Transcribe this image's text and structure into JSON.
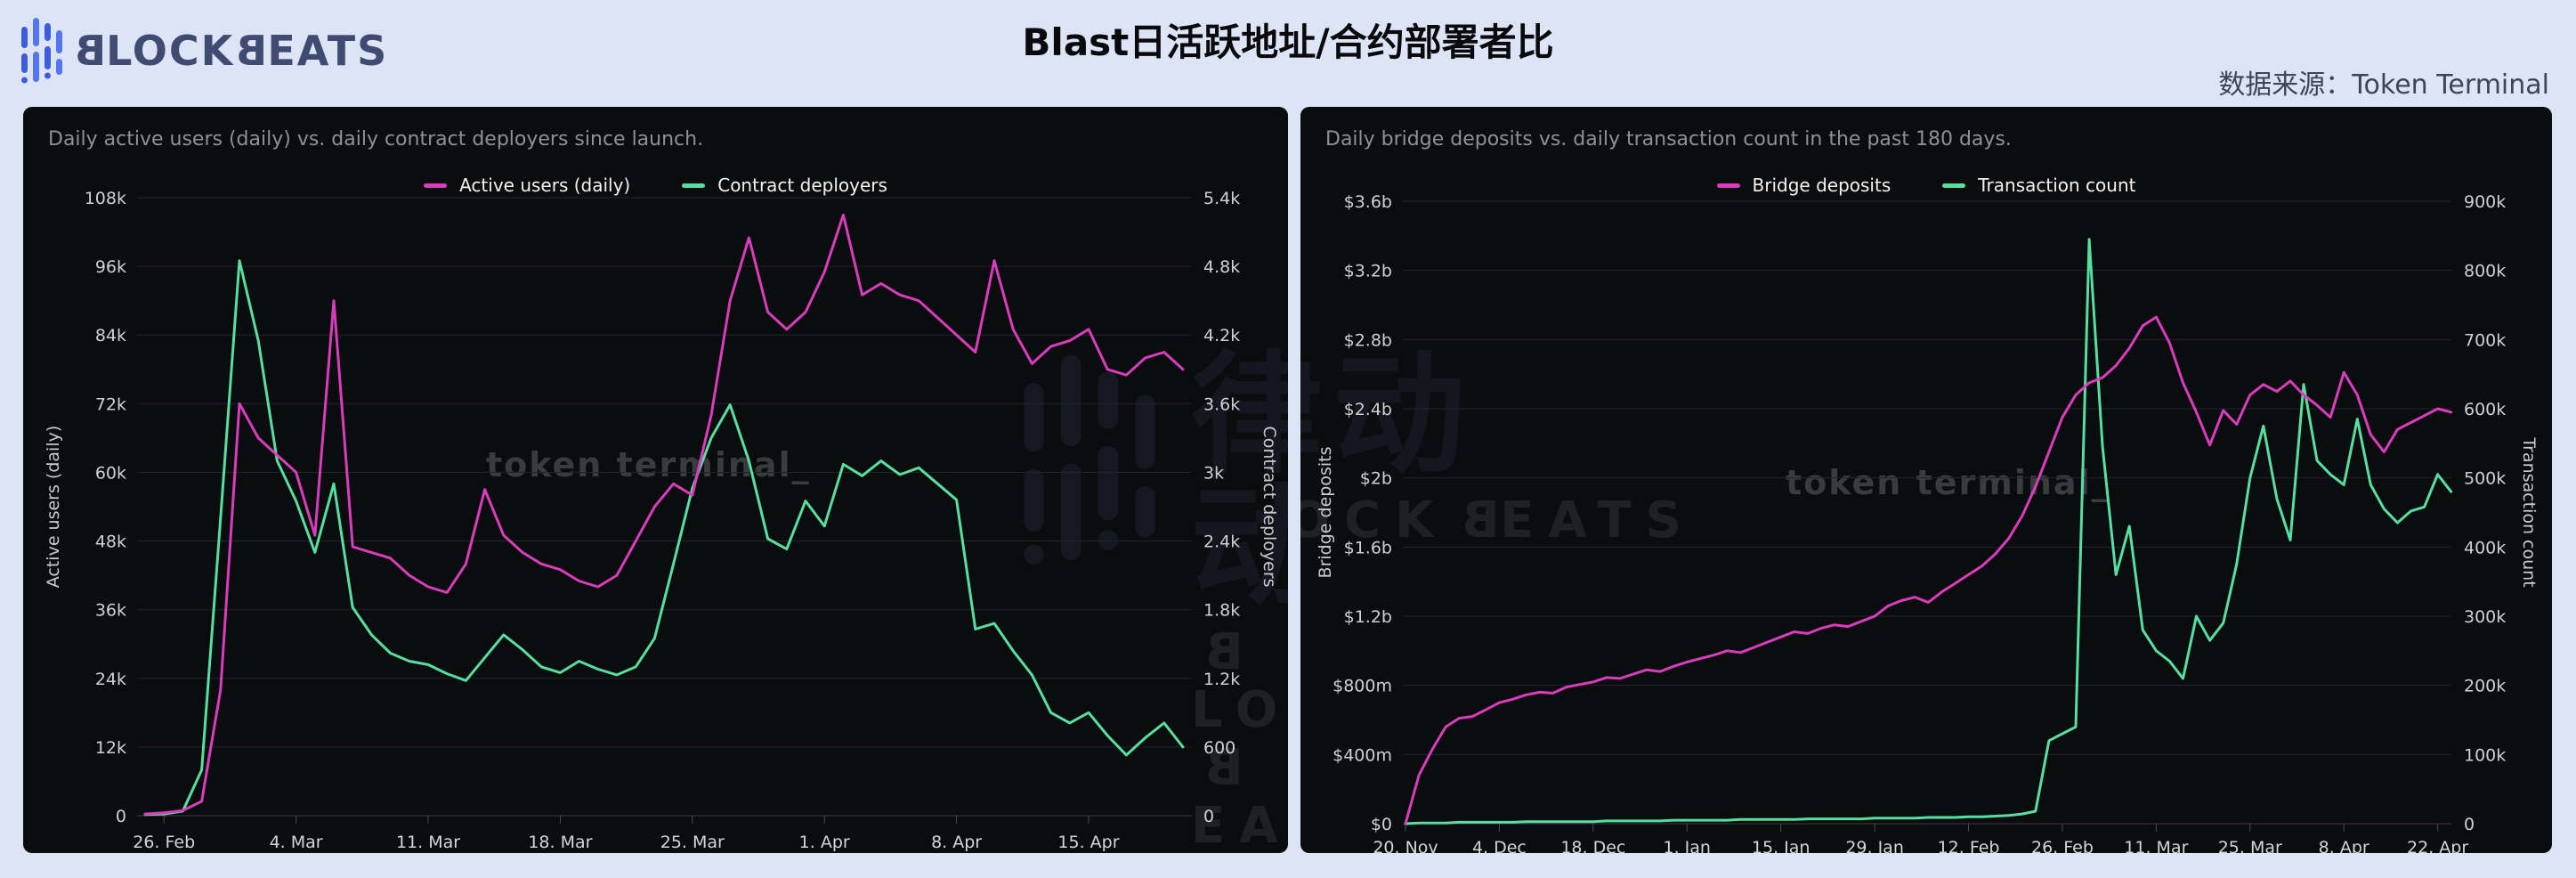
{
  "header": {
    "logo": {
      "b": "B",
      "part1": "LOCK",
      "part2": "EATS"
    },
    "title": "Blast日活跃地址/合约部署者比",
    "source": "数据来源：Token Terminal"
  },
  "watermarks": {
    "token_terminal": "token terminal_",
    "blockbeats_cn": "律动",
    "blockbeats_en": {
      "b": "B",
      "part1": "LOCK",
      "part2": "EATS"
    }
  },
  "chart_data": [
    {
      "type": "line",
      "subtitle": "Daily active users (daily) vs. daily contract deployers since launch.",
      "x_axis": {
        "start_date": "2024-02-25",
        "step_days": 1,
        "tick_labels": [
          "26. Feb",
          "4. Mar",
          "11. Mar",
          "18. Mar",
          "25. Mar",
          "1. Apr",
          "8. Apr",
          "15. Apr"
        ],
        "tick_indices": [
          1,
          8,
          15,
          22,
          29,
          36,
          43,
          50
        ]
      },
      "left_axis": {
        "label": "Active users (daily)",
        "max": 108000,
        "tick_labels": [
          "108k",
          "96k",
          "84k",
          "72k",
          "60k",
          "48k",
          "36k",
          "24k",
          "12k",
          "0"
        ]
      },
      "right_axis": {
        "label": "Contract deployers",
        "max": 5400,
        "tick_labels": [
          "5.4k",
          "4.8k",
          "4.2k",
          "3.6k",
          "3k",
          "2.4k",
          "1.8k",
          "1.2k",
          "600",
          "0"
        ]
      },
      "series": [
        {
          "name": "Active users (daily)",
          "color": "#d93cbc",
          "axis": "left",
          "values": [
            300,
            500,
            900,
            2500,
            22000,
            72000,
            66000,
            63000,
            60000,
            49000,
            90000,
            47000,
            46000,
            45000,
            42000,
            40000,
            39000,
            44000,
            57000,
            49000,
            46000,
            44000,
            43000,
            41000,
            40000,
            42000,
            48000,
            54000,
            58000,
            56000,
            70000,
            90000,
            101000,
            88000,
            85000,
            88000,
            95000,
            105000,
            91000,
            93000,
            91000,
            90000,
            87000,
            84000,
            81000,
            97000,
            85000,
            79000,
            82000,
            83000,
            85000,
            78000,
            77000,
            80000,
            81000,
            78000
          ]
        },
        {
          "name": "Contract deployers",
          "color": "#55dfa0",
          "axis": "right",
          "values": [
            10,
            15,
            40,
            400,
            2600,
            4850,
            4150,
            3100,
            2750,
            2300,
            2900,
            1820,
            1580,
            1420,
            1350,
            1320,
            1240,
            1180,
            1380,
            1580,
            1450,
            1300,
            1250,
            1350,
            1280,
            1230,
            1300,
            1550,
            2200,
            2860,
            3300,
            3590,
            3100,
            2420,
            2330,
            2750,
            2530,
            3070,
            2970,
            3100,
            2980,
            3040,
            2900,
            2760,
            1630,
            1680,
            1440,
            1230,
            900,
            810,
            900,
            700,
            530,
            680,
            810,
            600
          ]
        }
      ]
    },
    {
      "type": "line",
      "subtitle": "Daily bridge deposits vs. daily transaction count in the past 180 days.",
      "x_axis": {
        "start_date": "2023-11-20",
        "step_days": 2,
        "tick_labels": [
          "20. Nov",
          "4. Dec",
          "18. Dec",
          "1. Jan",
          "15. Jan",
          "29. Jan",
          "12. Feb",
          "26. Feb",
          "11. Mar",
          "25. Mar",
          "8. Apr",
          "22. Apr"
        ],
        "tick_indices": [
          0,
          7,
          14,
          21,
          28,
          35,
          42,
          49,
          56,
          63,
          70,
          77
        ]
      },
      "left_axis": {
        "label": "Bridge deposits",
        "max": 3600,
        "unit": "million USD",
        "tick_labels": [
          "$3.6b",
          "$3.2b",
          "$2.8b",
          "$2.4b",
          "$2b",
          "$1.6b",
          "$1.2b",
          "$800m",
          "$400m",
          "$0"
        ]
      },
      "right_axis": {
        "label": "Transaction count",
        "max": 900000,
        "tick_labels": [
          "900k",
          "800k",
          "700k",
          "600k",
          "500k",
          "400k",
          "300k",
          "200k",
          "100k",
          "0"
        ]
      },
      "series": [
        {
          "name": "Bridge deposits",
          "color": "#d93cbc",
          "axis": "left",
          "values": [
            0,
            280,
            430,
            560,
            610,
            620,
            660,
            700,
            720,
            745,
            760,
            755,
            790,
            805,
            820,
            845,
            840,
            865,
            890,
            880,
            910,
            935,
            955,
            975,
            1000,
            990,
            1020,
            1050,
            1080,
            1110,
            1100,
            1130,
            1150,
            1140,
            1170,
            1200,
            1260,
            1290,
            1310,
            1280,
            1340,
            1390,
            1440,
            1490,
            1560,
            1650,
            1780,
            1950,
            2150,
            2350,
            2480,
            2550,
            2580,
            2650,
            2750,
            2880,
            2930,
            2780,
            2550,
            2380,
            2190,
            2390,
            2310,
            2480,
            2540,
            2500,
            2560,
            2480,
            2420,
            2350,
            2610,
            2480,
            2250,
            2150,
            2280,
            2320,
            2360,
            2400,
            2380
          ]
        },
        {
          "name": "Transaction count",
          "color": "#55dfa0",
          "axis": "right",
          "values": [
            0,
            1000,
            1000,
            1000,
            2000,
            2000,
            2000,
            2000,
            2000,
            3000,
            3000,
            3000,
            3000,
            3000,
            3000,
            4000,
            4000,
            4000,
            4000,
            4000,
            5000,
            5000,
            5000,
            5000,
            5000,
            6000,
            6000,
            6000,
            6000,
            6000,
            7000,
            7000,
            7000,
            7000,
            7000,
            8000,
            8000,
            8000,
            8000,
            9000,
            9000,
            9000,
            10000,
            10000,
            11000,
            12000,
            14000,
            18000,
            120000,
            130000,
            140000,
            845000,
            545000,
            360000,
            430000,
            280000,
            250000,
            235000,
            210000,
            300000,
            265000,
            290000,
            375000,
            500000,
            575000,
            470000,
            410000,
            635000,
            525000,
            505000,
            490000,
            585000,
            490000,
            455000,
            435000,
            452000,
            458000,
            505000,
            480000
          ]
        }
      ]
    }
  ]
}
